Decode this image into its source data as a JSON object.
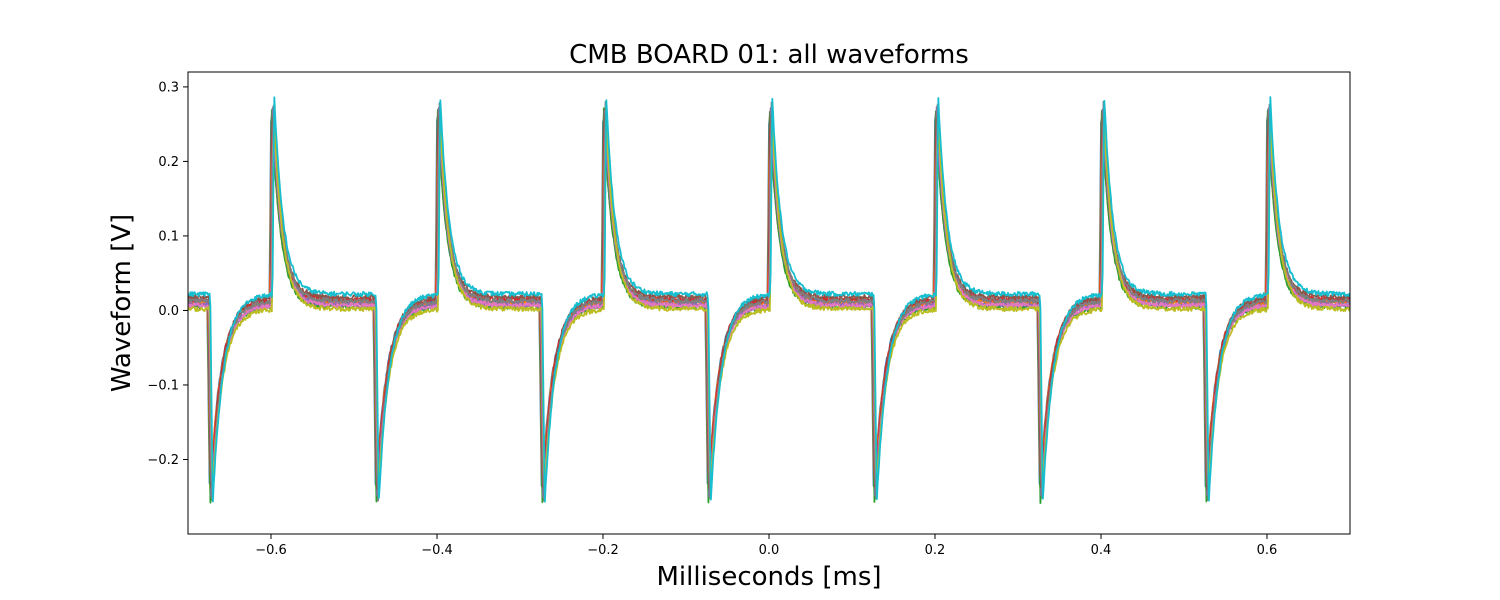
{
  "chart_data": {
    "type": "line",
    "title": "CMB BOARD 01: all waveforms",
    "xlabel": "Milliseconds [ms]",
    "ylabel": "Waveform [V]",
    "xlim": [
      -0.7,
      0.7
    ],
    "ylim": [
      -0.3,
      0.32
    ],
    "xticks": [
      -0.6,
      -0.4,
      -0.2,
      0.0,
      0.2,
      0.4,
      0.6
    ],
    "xtick_labels": [
      "−0.6",
      "−0.4",
      "−0.2",
      "0.0",
      "0.2",
      "0.4",
      "0.6"
    ],
    "yticks": [
      -0.2,
      -0.1,
      0.0,
      0.1,
      0.2,
      0.3
    ],
    "ytick_labels": [
      "−0.2",
      "−0.1",
      "0.0",
      "0.1",
      "0.2",
      "0.3"
    ],
    "grid": false,
    "legend": "none",
    "period_ms": 0.2,
    "positive_spike_times_ms": [
      -0.6,
      -0.4,
      -0.2,
      0.0,
      0.2,
      0.4,
      0.6
    ],
    "negative_spike_times_ms": [
      -0.675,
      -0.475,
      -0.275,
      -0.075,
      0.125,
      0.325,
      0.525
    ],
    "positive_peak_V": 0.29,
    "negative_peak_V": -0.26,
    "baseline_range_V": [
      0.0,
      0.025
    ],
    "series": [
      {
        "color": "#1f77b4",
        "baseline": 0.012,
        "peak": 0.28,
        "trough": -0.252
      },
      {
        "color": "#ff7f0e",
        "baseline": 0.01,
        "peak": 0.275,
        "trough": -0.25
      },
      {
        "color": "#2ca02c",
        "baseline": 0.005,
        "peak": 0.27,
        "trough": -0.258
      },
      {
        "color": "#d62728",
        "baseline": 0.015,
        "peak": 0.282,
        "trough": -0.248
      },
      {
        "color": "#9467bd",
        "baseline": 0.008,
        "peak": 0.276,
        "trough": -0.254
      },
      {
        "color": "#8c564b",
        "baseline": 0.018,
        "peak": 0.284,
        "trough": -0.256
      },
      {
        "color": "#e377c2",
        "baseline": 0.007,
        "peak": 0.272,
        "trough": -0.25
      },
      {
        "color": "#7f7f7f",
        "baseline": 0.013,
        "peak": 0.278,
        "trough": -0.253
      },
      {
        "color": "#bcbd22",
        "baseline": 0.002,
        "peak": 0.268,
        "trough": -0.246
      },
      {
        "color": "#17becf",
        "baseline": 0.022,
        "peak": 0.29,
        "trough": -0.258
      }
    ]
  }
}
